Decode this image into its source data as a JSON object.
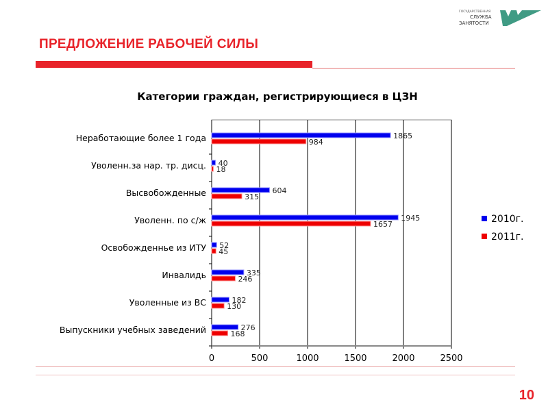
{
  "header": {
    "title": "ПРЕДЛОЖЕНИЕ РАБОЧЕЙ СИЛЫ",
    "logo_text": [
      "ГОСУДАРСТВЕННАЯ",
      "СЛУЖБА",
      "ЗАНЯТОСТИ"
    ]
  },
  "page_number": "10",
  "chart_data": {
    "type": "bar",
    "orientation": "horizontal",
    "title": "Категории граждан, регистрирующиеся в ЦЗН",
    "categories": [
      "Неработающие более 1 года",
      "Уволенн.за нар. тр. дисц.",
      "Высвобожденные",
      "Уволенн. по с/ж",
      "Освобожденнье из ИТУ",
      "Инвалидь",
      "Уволенные из ВС",
      "Выпускники учебных заведений"
    ],
    "series": [
      {
        "name": "2010г.",
        "color": "#0000ee",
        "values": [
          1865,
          40,
          604,
          1945,
          52,
          335,
          182,
          276
        ]
      },
      {
        "name": "2011г.",
        "color": "#ee0000",
        "values": [
          984,
          18,
          315,
          1657,
          45,
          246,
          130,
          168
        ]
      }
    ],
    "xlim": [
      0,
      2500
    ],
    "xticks": [
      "0",
      "500",
      "1000",
      "1500",
      "2000",
      "2500"
    ],
    "grid": true,
    "legend": "right"
  }
}
